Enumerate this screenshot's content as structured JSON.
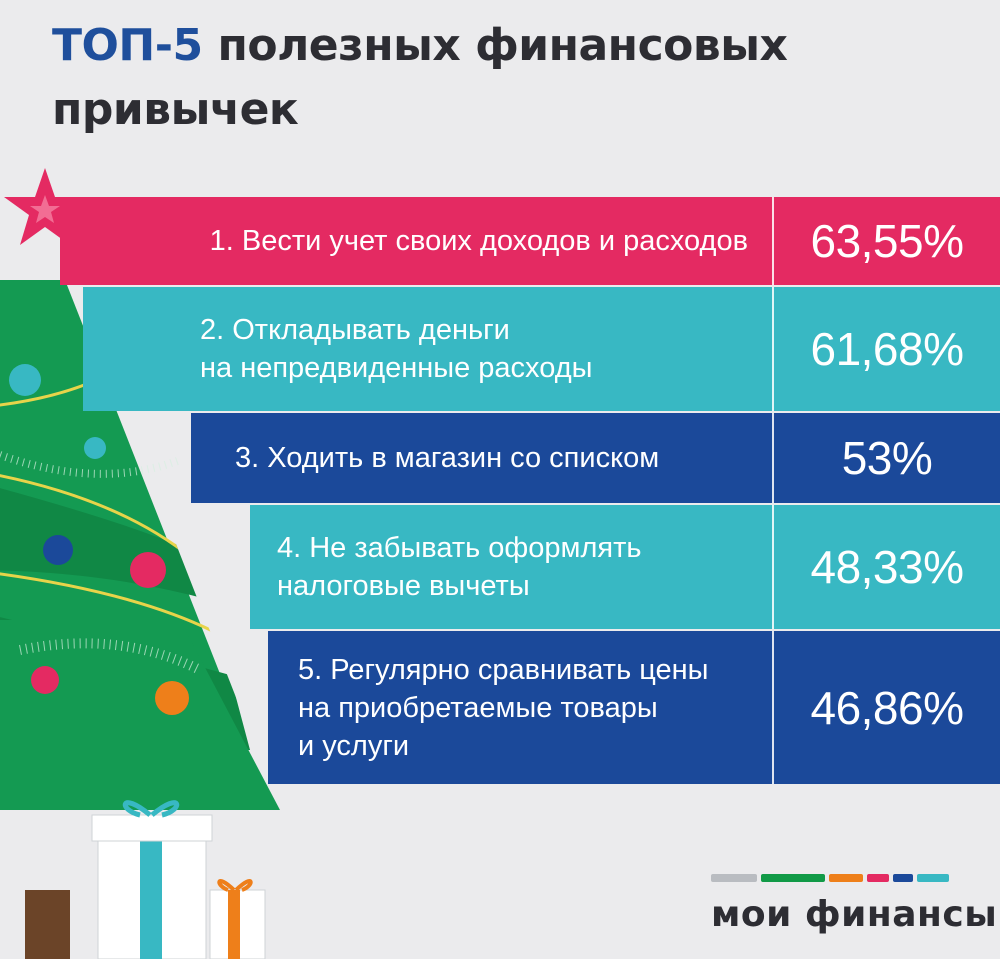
{
  "title": {
    "accent": "ТОП-5",
    "rest": " полезных финансовых привычек"
  },
  "chart_data": {
    "type": "bar",
    "categories": [
      "1. Вести учет своих доходов и расходов",
      "2. Откладывать деньги\nна непредвиденные расходы",
      "3. Ходить в магазин со списком",
      "4. Не забывать оформлять\nналоговые вычеты",
      "5. Регулярно сравнивать цены\nна приобретаемые товары\nи услуги"
    ],
    "values": [
      63.55,
      61.68,
      53,
      48.33,
      46.86
    ],
    "value_labels": [
      "63,55%",
      "61,68%",
      "53%",
      "48,33%",
      "46,86%"
    ],
    "colors": [
      "#e42a62",
      "#38b8c3",
      "#1b499a",
      "#38b8c3",
      "#1b499a"
    ],
    "unit": "%"
  },
  "logo": {
    "text": "мои финансы",
    "strip_colors": [
      "#b9bcc1",
      "#119a47",
      "#ee7f1a",
      "#e42a62",
      "#1b499a",
      "#38b8c3"
    ]
  }
}
